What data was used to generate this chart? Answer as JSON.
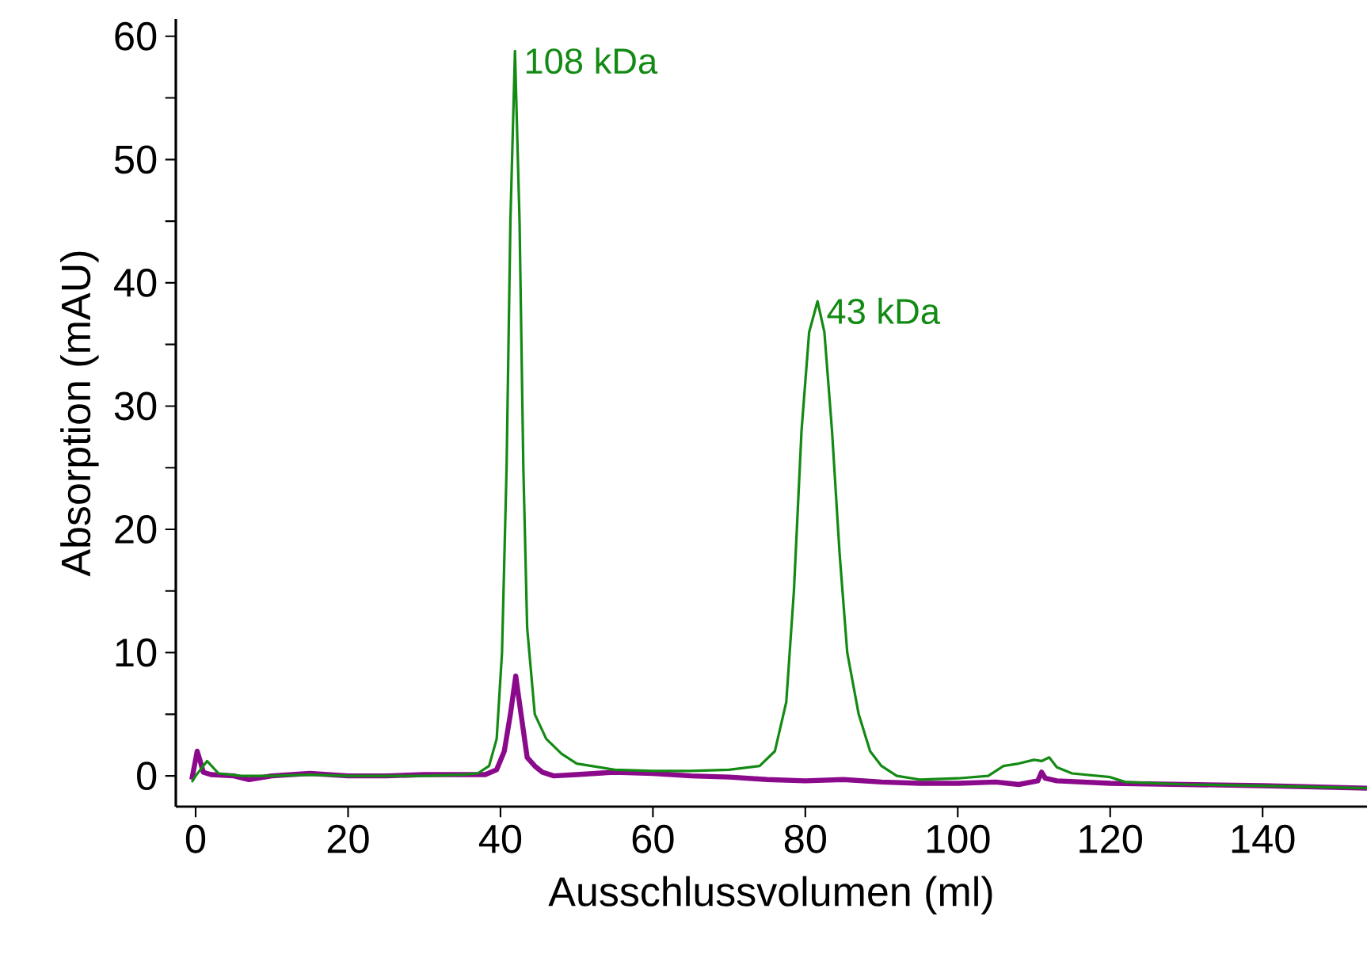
{
  "chart_data": {
    "type": "line",
    "xlabel": "Ausschlussvolumen (ml)",
    "ylabel": "Absorption (mAU)",
    "xlim": [
      -2.6,
      153.7
    ],
    "ylim": [
      -2.5,
      61.4
    ],
    "xticks": [
      0,
      20,
      40,
      60,
      80,
      100,
      120,
      140
    ],
    "yticks": [
      0,
      {
        "value": 5,
        "label": null
      },
      10,
      {
        "value": 15,
        "label": null
      },
      20,
      {
        "value": 25,
        "label": null
      },
      30,
      {
        "value": 35,
        "label": null
      },
      40,
      {
        "value": 45,
        "label": null
      },
      50,
      {
        "value": 55,
        "label": null
      },
      60
    ],
    "grid": false,
    "annotations": [
      {
        "text": "108 kDa",
        "x": 41.9,
        "y": 58.8
      },
      {
        "text": "43 kDa",
        "x": 81.6,
        "y": 38.5
      }
    ],
    "series": [
      {
        "color": "#8b0a8b",
        "x": [
          -0.5,
          0.2,
          0.6,
          1,
          2,
          5,
          7,
          10,
          15,
          20,
          25,
          30,
          35,
          38,
          39.5,
          40.5,
          41.3,
          42,
          42.7,
          43.5,
          44.5,
          45.5,
          47,
          50,
          55,
          60,
          65,
          70,
          75,
          80,
          85,
          90,
          95,
          100,
          105,
          108,
          110.5,
          111,
          111.5,
          113,
          120,
          130,
          140,
          153.7
        ],
        "values": [
          -0.3,
          2.0,
          1.2,
          0.3,
          0.1,
          0,
          -0.3,
          0,
          0.2,
          0,
          0,
          0.1,
          0.1,
          0.1,
          0.5,
          2,
          5,
          8.1,
          5,
          1.5,
          0.8,
          0.3,
          0,
          0.1,
          0.3,
          0.2,
          0,
          -0.1,
          -0.3,
          -0.4,
          -0.3,
          -0.5,
          -0.6,
          -0.6,
          -0.5,
          -0.7,
          -0.4,
          0.3,
          -0.2,
          -0.4,
          -0.6,
          -0.7,
          -0.8,
          -1.0
        ]
      },
      {
        "color": "#138a13",
        "x": [
          -0.5,
          0,
          1.5,
          3,
          6,
          10,
          15,
          20,
          25,
          30,
          35,
          37,
          38.5,
          39.5,
          40.2,
          40.8,
          41.3,
          41.9,
          42.5,
          43,
          43.5,
          44.5,
          46,
          48,
          50,
          55,
          60,
          65,
          70,
          74,
          76,
          77.5,
          78.5,
          79.5,
          80.5,
          81.6,
          82.5,
          83.5,
          84.5,
          85.5,
          87,
          88.5,
          90,
          92,
          95,
          100,
          104,
          106,
          108,
          110,
          111,
          112,
          113,
          115,
          120,
          122,
          130,
          140,
          153.7
        ],
        "values": [
          -0.5,
          0,
          1.2,
          0.2,
          0,
          0,
          0.1,
          0,
          0,
          0,
          0.1,
          0.2,
          0.8,
          3,
          10,
          25,
          45,
          58.8,
          45,
          25,
          12,
          5,
          3,
          1.8,
          1.0,
          0.5,
          0.4,
          0.4,
          0.5,
          0.8,
          2,
          6,
          15,
          28,
          36,
          38.5,
          36,
          28,
          18,
          10,
          5,
          2,
          0.8,
          0,
          -0.3,
          -0.2,
          0,
          0.8,
          1,
          1.3,
          1.2,
          1.5,
          0.7,
          0.2,
          -0.1,
          -0.5,
          -0.7,
          -0.8,
          -1.0
        ]
      }
    ]
  }
}
